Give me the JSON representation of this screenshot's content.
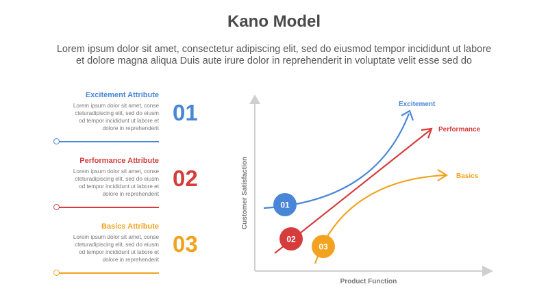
{
  "header": {
    "title": "Kano Model",
    "subtitle_line1": "Lorem ipsum dolor sit amet, consectetur adipiscing elit, sed do eiusmod tempor incididunt ut labore",
    "subtitle_line2": "et dolore magna aliqua Duis aute irure dolor in reprehenderit in voluptate velit esse sed do"
  },
  "attributes": [
    {
      "title": "Excitement Attribute",
      "number": "01",
      "color": "#4a86d8",
      "body": [
        "Lorem ipsum dolor sit amet, conse",
        "cteturadipiscing elit, sed do eiusm",
        "od tempor incididunt ut labore et",
        "dolore in reprehenderit"
      ]
    },
    {
      "title": "Performance Attribute",
      "number": "02",
      "color": "#d63c3c",
      "body": [
        "Lorem ipsum dolor sit amet, conse",
        "cteturadipiscing elit, sed do eiusm",
        "od tempor incididunt ut labore et",
        "dolore in reprehenderit"
      ]
    },
    {
      "title": "Basics Attribute",
      "number": "03",
      "color": "#f2a21e",
      "body": [
        "Lorem ipsum dolor sit amet, conse",
        "cteturadipiscing elit, sed do eiusm",
        "od tempor incididunt ut labore et",
        "dolore in reprehenderit"
      ]
    }
  ],
  "chart": {
    "y_label": "Customer Satisfaction",
    "x_label": "Product Function",
    "axis_color": "#cfcfcf",
    "curves": [
      {
        "label": "Excitement",
        "marker": "01",
        "color": "#4a86d8"
      },
      {
        "label": "Performance",
        "marker": "02",
        "color": "#d63c3c"
      },
      {
        "label": "Basics",
        "marker": "03",
        "color": "#f2a21e"
      }
    ]
  }
}
